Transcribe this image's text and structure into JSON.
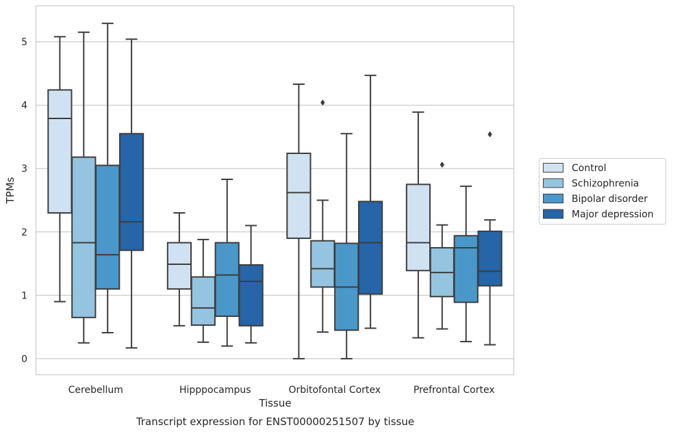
{
  "chart_data": {
    "type": "box",
    "xlabel": "Tissue",
    "ylabel": "TPMs",
    "caption": "Transcript expression for ENST00000251507 by tissue",
    "ylim": [
      -0.25,
      5.55
    ],
    "yticks": [
      0,
      1,
      2,
      3,
      4,
      5
    ],
    "grid": "horizontal",
    "legend_position": "right",
    "categories": [
      "Cerebellum",
      "Hipppocampus",
      "Orbitofontal Cortex",
      "Prefrontal Cortex"
    ],
    "series": [
      {
        "name": "Control",
        "color": "#d0e1f2",
        "boxes": [
          {
            "whislo": 0.9,
            "q1": 2.3,
            "med": 3.79,
            "q3": 4.24,
            "whishi": 5.08,
            "fliers": []
          },
          {
            "whislo": 0.52,
            "q1": 1.1,
            "med": 1.49,
            "q3": 1.83,
            "whishi": 2.3,
            "fliers": []
          },
          {
            "whislo": 0.0,
            "q1": 1.9,
            "med": 2.62,
            "q3": 3.24,
            "whishi": 4.33,
            "fliers": []
          },
          {
            "whislo": 0.33,
            "q1": 1.39,
            "med": 1.83,
            "q3": 2.75,
            "whishi": 3.89,
            "fliers": []
          }
        ]
      },
      {
        "name": "Schizophrenia",
        "color": "#94c4df",
        "boxes": [
          {
            "whislo": 0.25,
            "q1": 0.65,
            "med": 1.83,
            "q3": 3.18,
            "whishi": 5.15,
            "fliers": []
          },
          {
            "whislo": 0.26,
            "q1": 0.53,
            "med": 0.8,
            "q3": 1.29,
            "whishi": 1.88,
            "fliers": []
          },
          {
            "whislo": 0.42,
            "q1": 1.13,
            "med": 1.42,
            "q3": 1.86,
            "whishi": 2.5,
            "fliers": [
              4.04
            ]
          },
          {
            "whislo": 0.47,
            "q1": 0.98,
            "med": 1.36,
            "q3": 1.75,
            "whishi": 2.11,
            "fliers": [
              3.06
            ]
          }
        ]
      },
      {
        "name": "Bipolar disorder",
        "color": "#4a98c9",
        "boxes": [
          {
            "whislo": 0.41,
            "q1": 1.1,
            "med": 1.64,
            "q3": 3.05,
            "whishi": 5.29,
            "fliers": []
          },
          {
            "whislo": 0.2,
            "q1": 0.67,
            "med": 1.32,
            "q3": 1.83,
            "whishi": 2.83,
            "fliers": []
          },
          {
            "whislo": 0.0,
            "q1": 0.45,
            "med": 1.13,
            "q3": 1.82,
            "whishi": 3.55,
            "fliers": []
          },
          {
            "whislo": 0.27,
            "q1": 0.89,
            "med": 1.75,
            "q3": 1.94,
            "whishi": 2.72,
            "fliers": []
          }
        ]
      },
      {
        "name": "Major depression",
        "color": "#2565a8",
        "boxes": [
          {
            "whislo": 0.17,
            "q1": 1.71,
            "med": 2.16,
            "q3": 3.55,
            "whishi": 5.04,
            "fliers": []
          },
          {
            "whislo": 0.25,
            "q1": 0.52,
            "med": 1.22,
            "q3": 1.48,
            "whishi": 2.1,
            "fliers": []
          },
          {
            "whislo": 0.48,
            "q1": 1.02,
            "med": 1.83,
            "q3": 2.48,
            "whishi": 4.47,
            "fliers": []
          },
          {
            "whislo": 0.22,
            "q1": 1.15,
            "med": 1.38,
            "q3": 2.01,
            "whishi": 2.19,
            "fliers": [
              3.54
            ]
          }
        ]
      }
    ]
  }
}
